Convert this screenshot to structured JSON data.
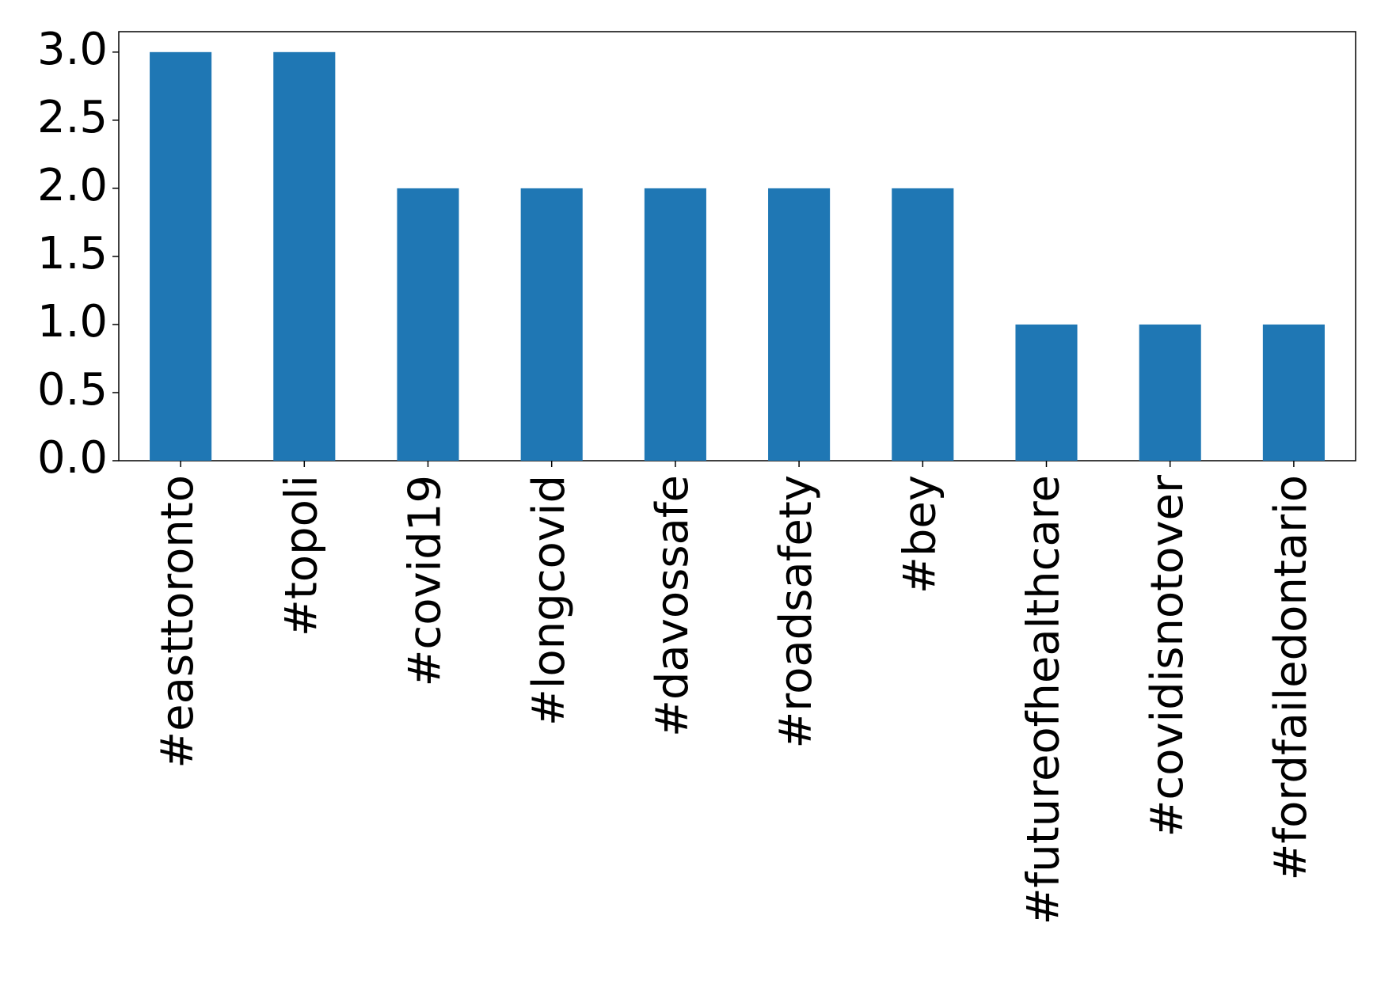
{
  "chart_data": {
    "type": "bar",
    "categories": [
      "#easttoronto",
      "#topoli",
      "#covid19",
      "#longcovid",
      "#davossafe",
      "#roadsafety",
      "#bey",
      "#futureofhealthcare",
      "#covidisnotover",
      "#fordfailedontario"
    ],
    "values": [
      3,
      3,
      2,
      2,
      2,
      2,
      2,
      1,
      1,
      1
    ],
    "color": "#1f77b4",
    "ylim": [
      0,
      3.15
    ],
    "yticks": [
      {
        "value": 0,
        "label": "0.0"
      },
      {
        "value": 0.5,
        "label": "0.5"
      },
      {
        "value": 1,
        "label": "1.0"
      },
      {
        "value": 1.5,
        "label": "1.5"
      },
      {
        "value": 2,
        "label": "2.0"
      },
      {
        "value": 2.5,
        "label": "2.5"
      },
      {
        "value": 3,
        "label": "3.0"
      }
    ],
    "grid": false
  }
}
